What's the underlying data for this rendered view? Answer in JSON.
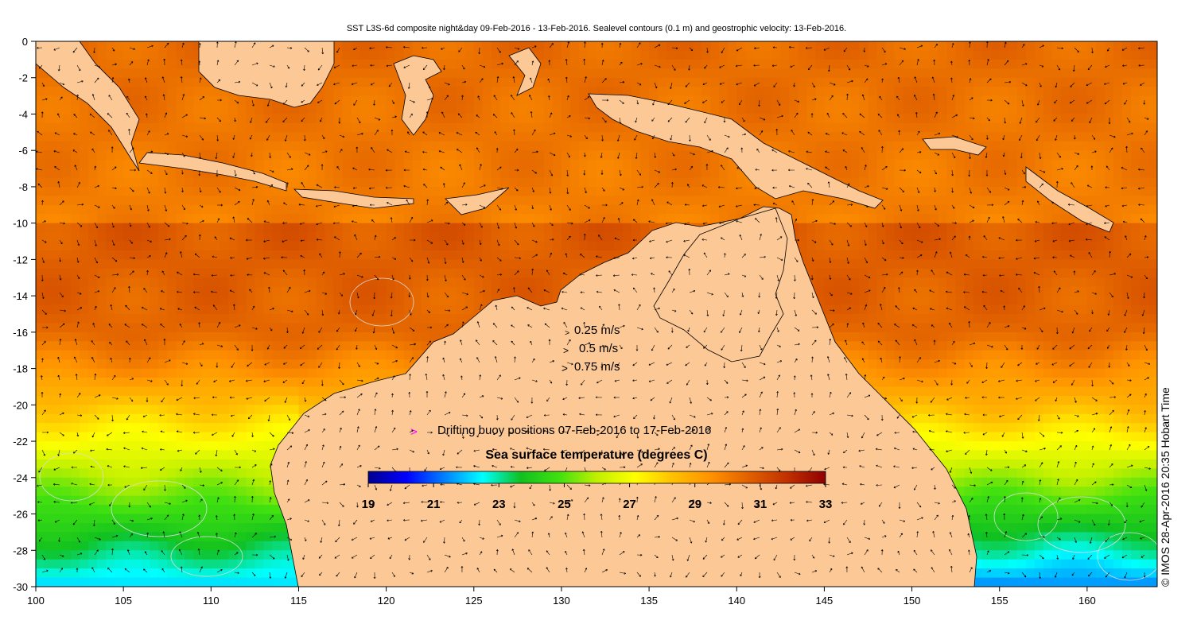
{
  "title": "SST L3S-6d composite night&day 09-Feb-2016 - 13-Feb-2016. Sealevel contours (0.1 m) and geostrophic velocity: 13-Feb-2016.",
  "credit": "© IMOS 28-Apr-2016 20:35 Hobart Time",
  "axes": {
    "x_ticks": [
      "100",
      "105",
      "110",
      "115",
      "120",
      "125",
      "130",
      "135",
      "140",
      "145",
      "150",
      "155",
      "160"
    ],
    "y_ticks": [
      "0",
      "-2",
      "-4",
      "-6",
      "-8",
      "-10",
      "-12",
      "-14",
      "-16",
      "-18",
      "-20",
      "-22",
      "-24",
      "-26",
      "-28",
      "-30"
    ],
    "xlim": [
      100,
      164
    ],
    "ylim": [
      -30,
      0
    ]
  },
  "velocity_legend": [
    {
      "label": "0.25 m/s",
      "speed": 0.25
    },
    {
      "label": "0.5 m/s",
      "speed": 0.5
    },
    {
      "label": "0.75 m/s",
      "speed": 0.75
    }
  ],
  "buoy_legend": {
    "marker": ">",
    "label": "Drifting buoy positions 07-Feb-2016 to 17-Feb-2016",
    "color": "#ff00ff"
  },
  "colorbar": {
    "title": "Sea surface temperature (degrees C)",
    "ticks": [
      "19",
      "21",
      "23",
      "25",
      "27",
      "29",
      "31",
      "33"
    ],
    "range": [
      19,
      33
    ],
    "colors": [
      "#00008f",
      "#0000ff",
      "#0080ff",
      "#00ffff",
      "#10c020",
      "#40e010",
      "#c0f000",
      "#ffff00",
      "#ffc000",
      "#ff9000",
      "#e06000",
      "#c03000",
      "#900000"
    ]
  },
  "colors": {
    "land": "#fcc896",
    "frame": "#000000",
    "vector": "#000000",
    "contour": "#dddddd"
  }
}
